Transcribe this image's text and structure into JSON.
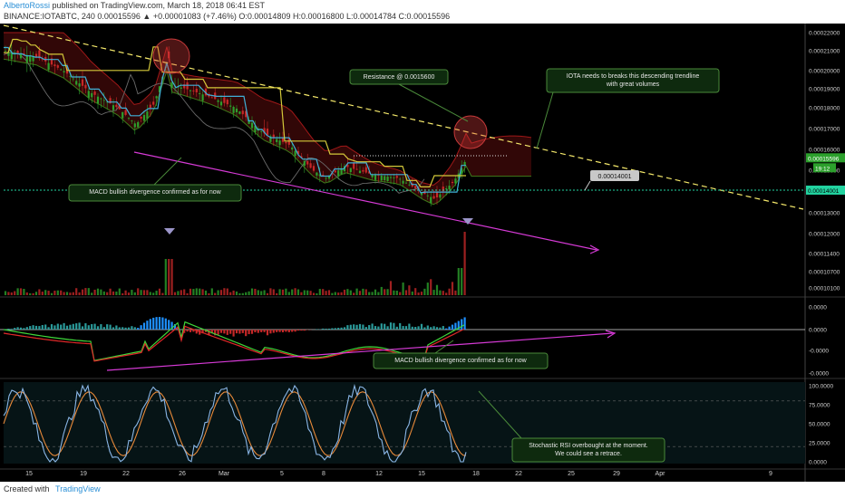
{
  "header": {
    "author": "AlbertoRossi",
    "published": "published on TradingView.com, March 18, 2018 06:41 EST",
    "symbol_line": "BINANCE:IOTABTC, 240",
    "ohlc": "0.00015596 ▲ +0.00001083 (+7.46%) O:0.00014809 H:0.00016800 L:0.00014784 C:0.00015596"
  },
  "footer": {
    "created_with": "Created with",
    "brand": "TradingView"
  },
  "colors": {
    "price_label": "#2ca02c",
    "line_label": "#22d3a0",
    "trendline": "#f5e96b",
    "divergence": "#d63ad6"
  },
  "chart_data": [
    {
      "type": "line",
      "panel": "price",
      "title": "",
      "y_axis": {
        "ticks": [
          "0.00022000",
          "0.00021000",
          "0.00020000",
          "0.00019000",
          "0.00018000",
          "0.00017000",
          "0.00016000",
          "0.00015000",
          "0.00014000",
          "0.00013000",
          "0.00012000",
          "0.00011400",
          "0.00010700",
          "0.00010100"
        ],
        "tick_values": [
          0.00022,
          0.00021,
          0.0002,
          0.00019,
          0.00018,
          0.00017,
          0.00016,
          0.00015,
          0.00014,
          0.00013,
          0.00012,
          0.000114,
          0.000107,
          0.000101
        ]
      },
      "x_axis": {
        "ticks": [
          "15",
          "19",
          "22",
          "26",
          "Mar",
          "5",
          "8",
          "12",
          "15",
          "18",
          "22",
          "25",
          "29",
          "Apr",
          "9"
        ]
      },
      "current_price": "0.00015596",
      "time_label": "19:12",
      "horizontal_line": "0.00014001",
      "annotations": [
        "Resistance @ 0.0015600",
        "IOTA needs to breaks this descending trendline\n with great volumes",
        "MACD bullish divergence confirmed as for now",
        "0.00014001"
      ]
    },
    {
      "type": "bar",
      "panel": "macd",
      "y_axis": {
        "ticks": [
          "0.0000",
          "0.0000",
          "-0.0000",
          "-0.0000"
        ]
      },
      "annotations": [
        "MACD bullish divergence confirmed as for now"
      ]
    },
    {
      "type": "line",
      "panel": "stoch_rsi",
      "y_axis": {
        "ticks": [
          "100.0000",
          "75.0000",
          "50.0000",
          "25.0000",
          "0.0000"
        ],
        "tick_values": [
          100,
          75,
          50,
          25,
          0
        ]
      },
      "annotations": [
        "Stochastic RSI overbought at the moment.\nWe could see a retrace."
      ]
    }
  ]
}
